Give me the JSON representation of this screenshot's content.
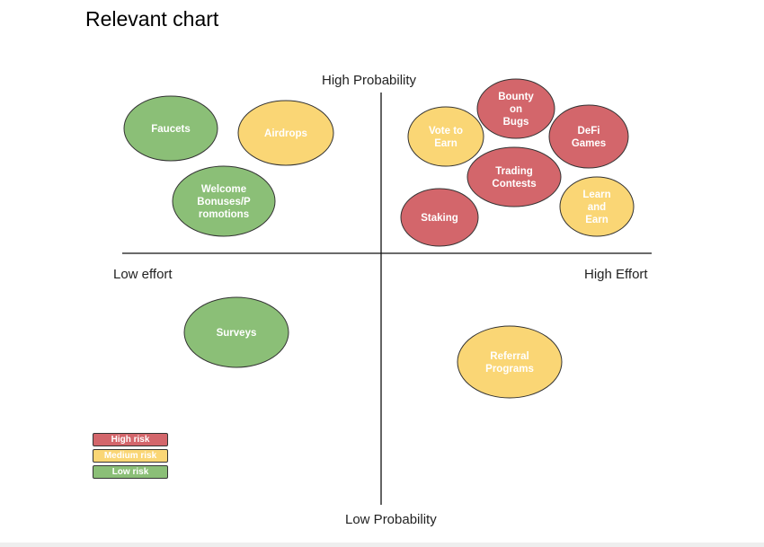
{
  "page_title": "Relevant chart",
  "chart_data": {
    "type": "scatter",
    "title": "",
    "axis_labels": {
      "top": "High Probability",
      "bottom": "Low Probability",
      "left": "Low effort",
      "right": "High Effort"
    },
    "colors": {
      "high": "#d3666b",
      "medium": "#fad675",
      "low": "#8bbf77",
      "outline": "#333333"
    },
    "legend": [
      {
        "risk": "high",
        "label": "High risk"
      },
      {
        "risk": "medium",
        "label": "Medium risk"
      },
      {
        "risk": "low",
        "label": "Low risk"
      }
    ],
    "points": [
      {
        "label": [
          "Faucets"
        ],
        "risk": "low"
      },
      {
        "label": [
          "Airdrops"
        ],
        "risk": "medium"
      },
      {
        "label": [
          "Welcome",
          "Bonuses/P",
          "romotions"
        ],
        "risk": "low"
      },
      {
        "label": [
          "Bounty",
          "on",
          "Bugs"
        ],
        "risk": "high"
      },
      {
        "label": [
          "Vote to",
          "Earn"
        ],
        "risk": "medium"
      },
      {
        "label": [
          "DeFi",
          "Games"
        ],
        "risk": "high"
      },
      {
        "label": [
          "Trading",
          "Contests"
        ],
        "risk": "high"
      },
      {
        "label": [
          "Learn",
          "and",
          "Earn"
        ],
        "risk": "medium"
      },
      {
        "label": [
          "Staking"
        ],
        "risk": "high"
      },
      {
        "label": [
          "Surveys"
        ],
        "risk": "low"
      },
      {
        "label": [
          "Referral",
          "Programs"
        ],
        "risk": "medium"
      }
    ]
  }
}
